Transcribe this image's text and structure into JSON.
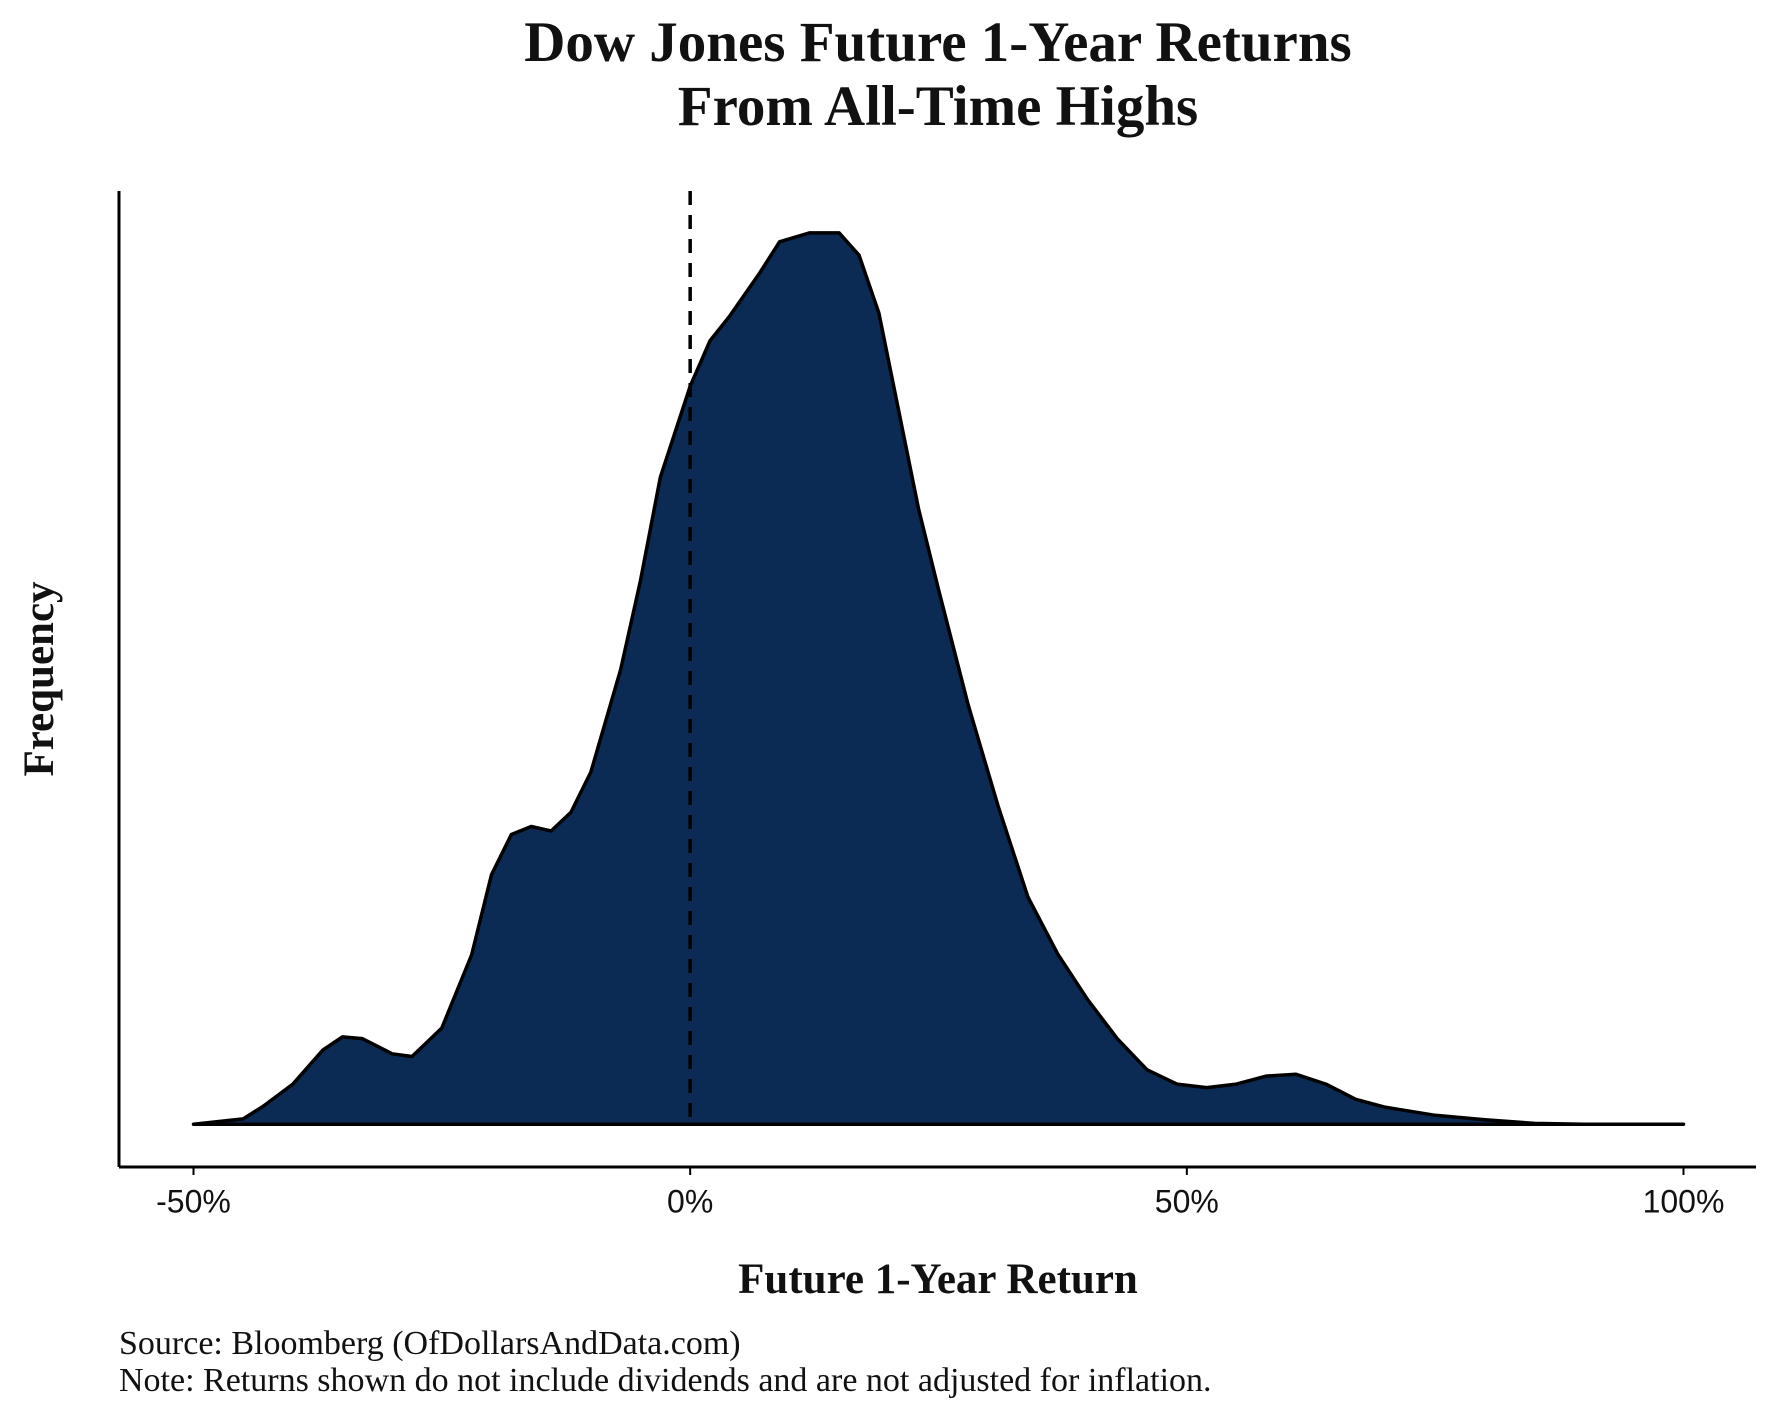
{
  "chart_data": {
    "type": "area",
    "title": [
      "Dow Jones Future 1-Year Returns",
      "From All-Time Highs"
    ],
    "x_label": "Future 1-Year Return",
    "y_label": "Frequency",
    "source": "Source: Bloomberg (OfDollarsAndData.com)",
    "note": "Note: Returns shown do not include dividends and are not adjusted for inflation.",
    "color": "#0b2b55",
    "vline": 0,
    "x": [
      -50,
      -45,
      -43,
      -40,
      -37,
      -35,
      -33,
      -30,
      -28,
      -25,
      -22,
      -20,
      -18,
      -16,
      -14,
      -12,
      -10,
      -7,
      -5,
      -3,
      0,
      2,
      4,
      7,
      9,
      12,
      15,
      17,
      19,
      21,
      23,
      25,
      28,
      31,
      34,
      37,
      40,
      43,
      46,
      49,
      52,
      55,
      58,
      61,
      64,
      67,
      70,
      75,
      80,
      85,
      90,
      100
    ],
    "y": [
      0,
      0.006,
      0.02,
      0.045,
      0.083,
      0.098,
      0.096,
      0.079,
      0.076,
      0.108,
      0.19,
      0.28,
      0.325,
      0.334,
      0.329,
      0.35,
      0.395,
      0.51,
      0.61,
      0.726,
      0.828,
      0.879,
      0.907,
      0.955,
      0.99,
      1.0,
      1.0,
      0.975,
      0.91,
      0.8,
      0.69,
      0.6,
      0.47,
      0.357,
      0.255,
      0.191,
      0.14,
      0.096,
      0.061,
      0.045,
      0.041,
      0.045,
      0.054,
      0.056,
      0.045,
      0.028,
      0.019,
      0.01,
      0.005,
      0.001,
      0,
      0
    ],
    "xlim": [
      -57.5,
      107.3
    ],
    "ylim": [
      -0.048,
      1.047
    ],
    "xticks": [
      {
        "value": -50,
        "label": "-50%"
      },
      {
        "value": 0,
        "label": "0%"
      },
      {
        "value": 50,
        "label": "50%"
      },
      {
        "value": 100,
        "label": "100%"
      }
    ]
  }
}
